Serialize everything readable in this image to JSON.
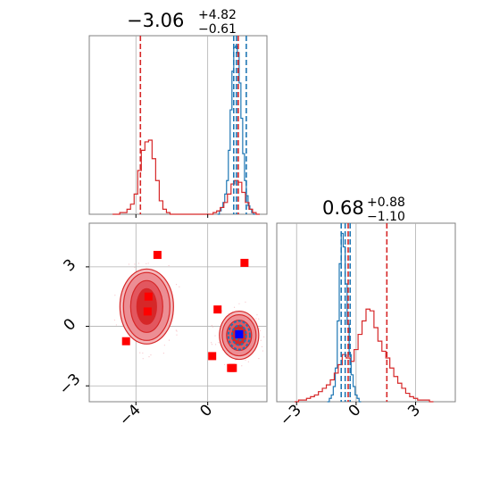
{
  "chart_data": [
    {
      "panel": "param1-marginal",
      "type": "histogram",
      "title": {
        "median": "−3.06",
        "upper": "+4.82",
        "lower": "−0.61"
      },
      "xlim": [
        -6.6,
        3.3
      ],
      "x_ticks": [
        -4,
        0
      ],
      "grid": true,
      "series": [
        {
          "color": "#1f77b4",
          "x": [
            0.6,
            0.7,
            0.8,
            0.9,
            1.0,
            1.1,
            1.2,
            1.3,
            1.4,
            1.5,
            1.6,
            1.7,
            1.8,
            1.9,
            2.0,
            2.1,
            2.2,
            2.3,
            2.4,
            2.5,
            2.6
          ],
          "values": [
            0.0,
            0.02,
            0.04,
            0.07,
            0.12,
            0.2,
            0.38,
            0.62,
            0.85,
            0.99,
            1.0,
            0.96,
            0.78,
            0.57,
            0.36,
            0.2,
            0.11,
            0.05,
            0.03,
            0.01,
            0.0
          ],
          "quantiles": [
            1.45,
            1.6,
            2.15
          ]
        },
        {
          "color": "#d62728",
          "x": [
            -5.2,
            -5.0,
            -4.8,
            -4.6,
            -4.4,
            -4.2,
            -4.0,
            -3.8,
            -3.6,
            -3.4,
            -3.2,
            -3.0,
            -2.8,
            -2.6,
            -2.4,
            -2.2,
            -2.0,
            -1.8,
            -1.6,
            -1.4,
            -1.2,
            -1.0,
            -0.8,
            -0.6,
            -0.4,
            -0.2,
            0.0,
            0.2,
            0.4,
            0.6,
            0.8,
            1.0,
            1.2,
            1.4,
            1.6,
            1.8,
            2.0,
            2.2,
            2.4,
            2.6,
            2.8
          ],
          "values": [
            0.0,
            0.0,
            0.01,
            0.01,
            0.03,
            0.06,
            0.12,
            0.26,
            0.38,
            0.43,
            0.44,
            0.33,
            0.2,
            0.08,
            0.03,
            0.01,
            0.0,
            0.0,
            0.0,
            0.0,
            0.0,
            0.0,
            0.0,
            0.0,
            0.0,
            0.0,
            0.0,
            0.0,
            0.01,
            0.02,
            0.04,
            0.07,
            0.12,
            0.18,
            0.2,
            0.19,
            0.13,
            0.07,
            0.03,
            0.01,
            0.0
          ],
          "quantiles": [
            -3.75,
            1.7
          ]
        }
      ]
    },
    {
      "panel": "param2-marginal",
      "type": "histogram",
      "title": {
        "median": "0.68",
        "upper": "+0.88",
        "lower": "−1.10"
      },
      "xlim": [
        -4.0,
        5.0
      ],
      "x_ticks": [
        -3,
        0,
        3
      ],
      "grid": true,
      "series": [
        {
          "color": "#1f77b4",
          "x": [
            -1.4,
            -1.3,
            -1.2,
            -1.1,
            -1.0,
            -0.9,
            -0.8,
            -0.7,
            -0.6,
            -0.5,
            -0.4,
            -0.3,
            -0.2,
            -0.1,
            0.0,
            0.1,
            0.2
          ],
          "values": [
            0.0,
            0.02,
            0.04,
            0.09,
            0.2,
            0.48,
            0.82,
            1.0,
            0.92,
            0.7,
            0.46,
            0.28,
            0.16,
            0.09,
            0.04,
            0.02,
            0.0
          ],
          "quantiles": [
            -0.75,
            -0.55,
            -0.3
          ]
        },
        {
          "color": "#d62728",
          "x": [
            -3.0,
            -2.8,
            -2.6,
            -2.4,
            -2.2,
            -2.0,
            -1.8,
            -1.6,
            -1.4,
            -1.2,
            -1.0,
            -0.8,
            -0.6,
            -0.4,
            -0.2,
            0.0,
            0.2,
            0.4,
            0.6,
            0.8,
            1.0,
            1.2,
            1.4,
            1.6,
            1.8,
            2.0,
            2.2,
            2.4,
            2.6,
            2.8,
            3.0,
            3.2,
            3.4,
            3.6,
            3.8
          ],
          "values": [
            0.0,
            0.01,
            0.01,
            0.02,
            0.03,
            0.04,
            0.06,
            0.08,
            0.1,
            0.13,
            0.17,
            0.22,
            0.28,
            0.26,
            0.24,
            0.31,
            0.4,
            0.48,
            0.55,
            0.54,
            0.44,
            0.36,
            0.3,
            0.26,
            0.2,
            0.15,
            0.11,
            0.08,
            0.05,
            0.03,
            0.02,
            0.01,
            0.01,
            0.01,
            0.0
          ],
          "quantiles": [
            -0.4,
            1.55
          ]
        }
      ]
    },
    {
      "panel": "joint",
      "type": "contour-scatter",
      "xlim": [
        -6.6,
        3.3
      ],
      "ylim": [
        -3.8,
        5.2
      ],
      "x_ticks": [
        -4,
        0
      ],
      "y_ticks": [
        -3,
        0,
        3
      ],
      "grid": true,
      "red_modes": [
        {
          "x": -3.4,
          "y": 1.0
        },
        {
          "x": 1.75,
          "y": -0.45
        }
      ],
      "blue_mode": {
        "x": 1.75,
        "y": -0.45
      },
      "red_markers": [
        {
          "x": -2.8,
          "y": 3.6
        },
        {
          "x": 2.05,
          "y": 3.2
        },
        {
          "x": -3.3,
          "y": 1.5
        },
        {
          "x": -3.35,
          "y": 0.75
        },
        {
          "x": 0.55,
          "y": 0.85
        },
        {
          "x": -4.55,
          "y": -0.75
        },
        {
          "x": 0.25,
          "y": -1.5
        },
        {
          "x": 1.3,
          "y": -2.1
        },
        {
          "x": 1.4,
          "y": -2.1
        },
        {
          "x": 1.75,
          "y": -0.4
        }
      ],
      "blue_marker": {
        "x": 1.75,
        "y": -0.4
      }
    }
  ]
}
